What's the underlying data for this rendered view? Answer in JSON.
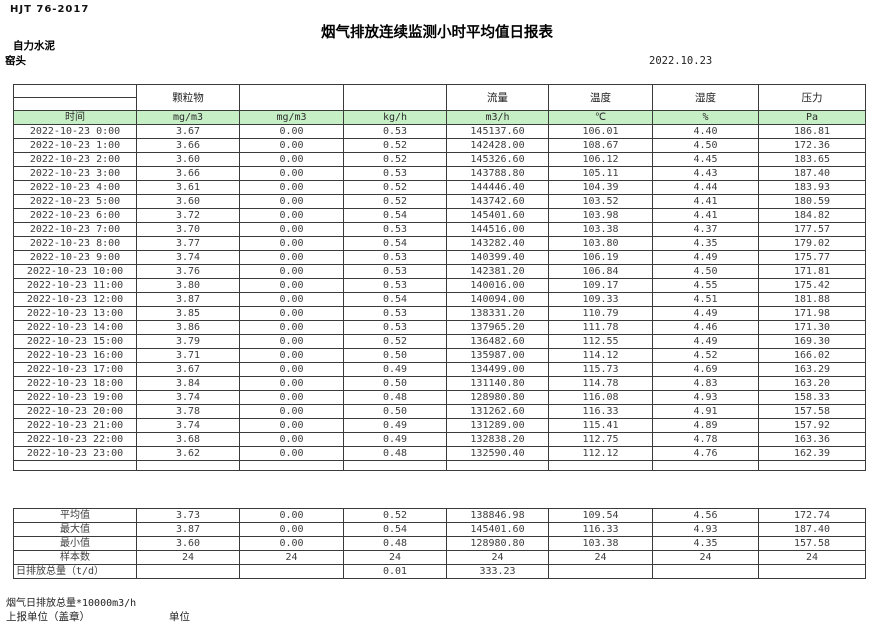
{
  "header": {
    "standard": "HJT  76-2017",
    "title": "烟气排放连续监测小时平均值日报表",
    "company": "自力水泥",
    "station": "窑头",
    "date": "2022.10.23"
  },
  "table": {
    "group_headers": [
      "",
      "颗粒物",
      "",
      "",
      "流量",
      "温度",
      "湿度",
      "压力"
    ],
    "unit_row": [
      "时间",
      "mg/m3",
      "mg/m3",
      "kg/h",
      "m3/h",
      "℃",
      "%",
      "Pa"
    ],
    "rows": [
      [
        "2022-10-23 0:00",
        "3.67",
        "0.00",
        "0.53",
        "145137.60",
        "106.01",
        "4.40",
        "186.81"
      ],
      [
        "2022-10-23 1:00",
        "3.66",
        "0.00",
        "0.52",
        "142428.00",
        "108.67",
        "4.50",
        "172.36"
      ],
      [
        "2022-10-23 2:00",
        "3.60",
        "0.00",
        "0.52",
        "145326.60",
        "106.12",
        "4.45",
        "183.65"
      ],
      [
        "2022-10-23 3:00",
        "3.66",
        "0.00",
        "0.53",
        "143788.80",
        "105.11",
        "4.43",
        "187.40"
      ],
      [
        "2022-10-23 4:00",
        "3.61",
        "0.00",
        "0.52",
        "144446.40",
        "104.39",
        "4.44",
        "183.93"
      ],
      [
        "2022-10-23 5:00",
        "3.60",
        "0.00",
        "0.52",
        "143742.60",
        "103.52",
        "4.41",
        "180.59"
      ],
      [
        "2022-10-23 6:00",
        "3.72",
        "0.00",
        "0.54",
        "145401.60",
        "103.98",
        "4.41",
        "184.82"
      ],
      [
        "2022-10-23 7:00",
        "3.70",
        "0.00",
        "0.53",
        "144516.00",
        "103.38",
        "4.37",
        "177.57"
      ],
      [
        "2022-10-23 8:00",
        "3.77",
        "0.00",
        "0.54",
        "143282.40",
        "103.80",
        "4.35",
        "179.02"
      ],
      [
        "2022-10-23 9:00",
        "3.74",
        "0.00",
        "0.53",
        "140399.40",
        "106.19",
        "4.49",
        "175.77"
      ],
      [
        "2022-10-23 10:00",
        "3.76",
        "0.00",
        "0.53",
        "142381.20",
        "106.84",
        "4.50",
        "171.81"
      ],
      [
        "2022-10-23 11:00",
        "3.80",
        "0.00",
        "0.53",
        "140016.00",
        "109.17",
        "4.55",
        "175.42"
      ],
      [
        "2022-10-23 12:00",
        "3.87",
        "0.00",
        "0.54",
        "140094.00",
        "109.33",
        "4.51",
        "181.88"
      ],
      [
        "2022-10-23 13:00",
        "3.85",
        "0.00",
        "0.53",
        "138331.20",
        "110.79",
        "4.49",
        "171.98"
      ],
      [
        "2022-10-23 14:00",
        "3.86",
        "0.00",
        "0.53",
        "137965.20",
        "111.78",
        "4.46",
        "171.30"
      ],
      [
        "2022-10-23 15:00",
        "3.79",
        "0.00",
        "0.52",
        "136482.60",
        "112.55",
        "4.49",
        "169.30"
      ],
      [
        "2022-10-23 16:00",
        "3.71",
        "0.00",
        "0.50",
        "135987.00",
        "114.12",
        "4.52",
        "166.02"
      ],
      [
        "2022-10-23 17:00",
        "3.67",
        "0.00",
        "0.49",
        "134499.00",
        "115.73",
        "4.69",
        "163.29"
      ],
      [
        "2022-10-23 18:00",
        "3.84",
        "0.00",
        "0.50",
        "131140.80",
        "114.78",
        "4.83",
        "163.20"
      ],
      [
        "2022-10-23 19:00",
        "3.74",
        "0.00",
        "0.48",
        "128980.80",
        "116.08",
        "4.93",
        "158.33"
      ],
      [
        "2022-10-23 20:00",
        "3.78",
        "0.00",
        "0.50",
        "131262.60",
        "116.33",
        "4.91",
        "157.58"
      ],
      [
        "2022-10-23 21:00",
        "3.74",
        "0.00",
        "0.49",
        "131289.00",
        "115.41",
        "4.89",
        "157.92"
      ],
      [
        "2022-10-23 22:00",
        "3.68",
        "0.00",
        "0.49",
        "132838.20",
        "112.75",
        "4.78",
        "163.36"
      ],
      [
        "2022-10-23 23:00",
        "3.62",
        "0.00",
        "0.48",
        "132590.40",
        "112.12",
        "4.76",
        "162.39"
      ]
    ],
    "summary_rows": [
      [
        "平均值",
        "3.73",
        "0.00",
        "0.52",
        "138846.98",
        "109.54",
        "4.56",
        "172.74"
      ],
      [
        "最大值",
        "3.87",
        "0.00",
        "0.54",
        "145401.60",
        "116.33",
        "4.93",
        "187.40"
      ],
      [
        "最小值",
        "3.60",
        "0.00",
        "0.48",
        "128980.80",
        "103.38",
        "4.35",
        "157.58"
      ],
      [
        "样本数",
        "24",
        "24",
        "24",
        "24",
        "24",
        "24",
        "24"
      ],
      [
        "日排放总量（t/d）",
        "",
        "",
        "0.01",
        "333.23",
        "",
        "",
        ""
      ]
    ]
  },
  "footer": {
    "note": "烟气日排放总量*10000m3/h",
    "report_unit": "上报单位（盖章）",
    "unit_label": "单位"
  },
  "colors": {
    "unit_row_green": "#c6efc6"
  }
}
